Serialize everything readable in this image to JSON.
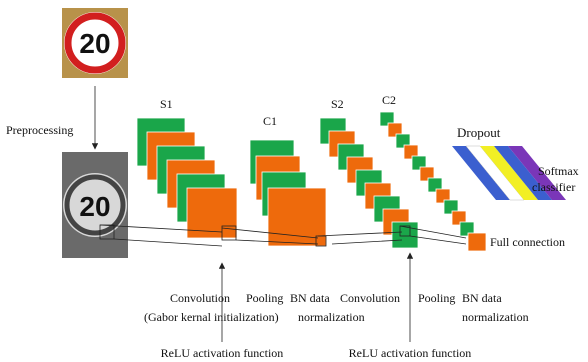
{
  "input": {
    "sign_text": "20",
    "step": "Preprocessing"
  },
  "preprocessed": {
    "sign_text": "20"
  },
  "layers": [
    {
      "label": "S1"
    },
    {
      "label": "C1"
    },
    {
      "label": "S2"
    },
    {
      "label": "C2"
    }
  ],
  "output": {
    "dropout": "Dropout",
    "classifier": [
      "Softmax",
      "classifier"
    ],
    "full_connection": "Full connection"
  },
  "operations": [
    {
      "lines": [
        "Convolution",
        "(Gabor kernal initialization)"
      ]
    },
    {
      "lines": [
        "Pooling"
      ]
    },
    {
      "lines": [
        "BN data",
        "normalization"
      ]
    },
    {
      "lines": [
        "Convolution"
      ]
    },
    {
      "lines": [
        "Pooling"
      ]
    },
    {
      "lines": [
        "BN data",
        "normalization"
      ]
    }
  ],
  "activations": [
    "ReLU activation function",
    "ReLU activation function"
  ]
}
